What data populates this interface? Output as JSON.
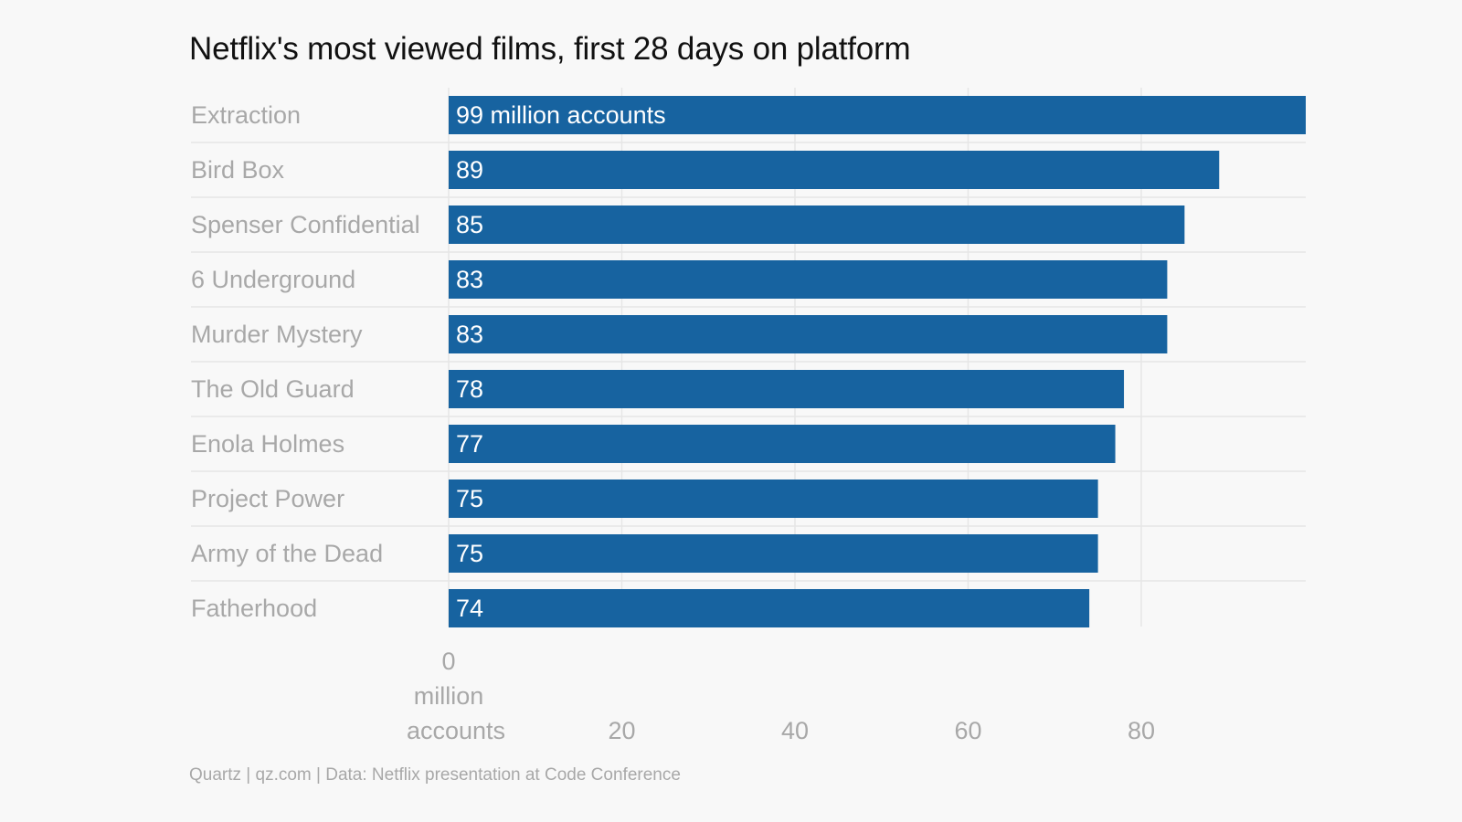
{
  "title": "Netflix's most viewed films, first 28 days on platform",
  "source": "Quartz | qz.com | Data: Netflix presentation at Code Conference",
  "colors": {
    "bar": "#1763a0",
    "background": "#f8f8f8",
    "category_label": "#a8a8a8",
    "tick_label": "#a8a8a8",
    "grid": "#e6e6e6",
    "bar_label": "#ffffff"
  },
  "chart_data": {
    "type": "bar",
    "orientation": "horizontal",
    "title": "Netflix's most viewed films, first 28 days on platform",
    "categories": [
      "Extraction",
      "Bird Box",
      "Spenser Confidential",
      "6 Underground",
      "Murder Mystery",
      "The Old Guard",
      "Enola Holmes",
      "Project Power",
      "Army of the Dead",
      "Fatherhood"
    ],
    "values": [
      99,
      89,
      85,
      83,
      83,
      78,
      77,
      75,
      75,
      74
    ],
    "value_labels": [
      "99 million accounts",
      "89",
      "85",
      "83",
      "83",
      "78",
      "77",
      "75",
      "75",
      "74"
    ],
    "x_ticks": [
      0,
      20,
      40,
      60,
      80
    ],
    "x_tick_labels": [
      [
        "0",
        "million",
        "accounts"
      ],
      [
        "20"
      ],
      [
        "40"
      ],
      [
        "60"
      ],
      [
        "80"
      ]
    ],
    "xlim": [
      0,
      99
    ],
    "grid": true
  }
}
